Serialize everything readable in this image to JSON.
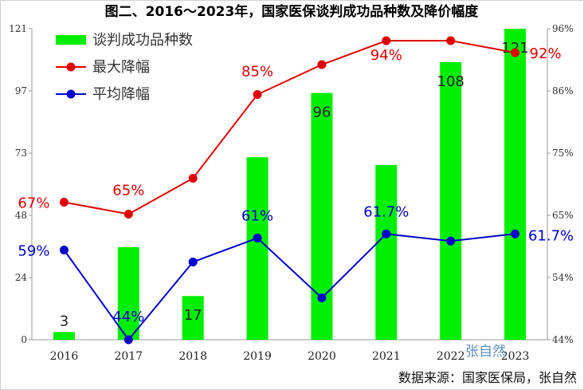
{
  "title": "图二、2016～2023年，国家医保谈判成功品种数及降价幅度",
  "source": "数据来源：国家医保局，张自然",
  "watermark": "张自然",
  "chart_data": {
    "type": "bar",
    "categories": [
      "2016",
      "2017",
      "2018",
      "2019",
      "2020",
      "2021",
      "2022",
      "2023"
    ],
    "left_axis": {
      "ticks": [
        "0",
        "24",
        "48",
        "73",
        "97",
        "121"
      ],
      "ylim": [
        0,
        121
      ]
    },
    "right_axis": {
      "ticks": [
        "44%",
        "54%",
        "65%",
        "75%",
        "86%",
        "96%"
      ],
      "ylim": [
        44,
        96
      ]
    },
    "grid": false,
    "legend_position": "top-left",
    "series": [
      {
        "name": "谈判成功品种数",
        "type": "bar",
        "axis": "left",
        "color": "#00ee00",
        "values": [
          3,
          36,
          17,
          71,
          96,
          68,
          108,
          121
        ],
        "labels": [
          "3",
          "",
          "17",
          "",
          "96",
          "",
          "108",
          "121"
        ]
      },
      {
        "name": "最大降幅",
        "type": "line",
        "axis": "right",
        "color": "#e00000",
        "values": [
          67,
          65,
          71,
          85,
          90,
          94,
          94,
          92
        ],
        "labels": [
          "67%",
          "65%",
          "",
          "85%",
          "",
          "94%",
          "",
          "92%"
        ]
      },
      {
        "name": "平均降幅",
        "type": "line",
        "axis": "right",
        "color": "#0000cc",
        "values": [
          59,
          44,
          57,
          61,
          51,
          61.7,
          60.5,
          61.7
        ],
        "labels": [
          "59%",
          "44%",
          "",
          "61%",
          "",
          "61.7%",
          "",
          "61.7%"
        ]
      }
    ]
  }
}
